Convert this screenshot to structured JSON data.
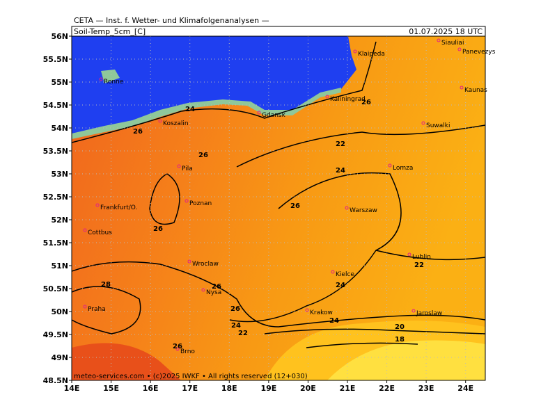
{
  "header": {
    "institute": "CETA — Inst. f. Wetter- und Klimafolgenanalysen —",
    "parameter": "Soil-Temp_5cm_[C]",
    "valid_time": "01.07.2025 18 UTC"
  },
  "footer": "meteo-services.com • (c)2025 IWKF • All rights reserved (12+030)",
  "map": {
    "lat_ticks": [
      {
        "value": 56,
        "label": "56N"
      },
      {
        "value": 55.5,
        "label": "55.5N"
      },
      {
        "value": 55,
        "label": "55N"
      },
      {
        "value": 54.5,
        "label": "54.5N"
      },
      {
        "value": 54,
        "label": "54N"
      },
      {
        "value": 53.5,
        "label": "53.5N"
      },
      {
        "value": 53,
        "label": "53N"
      },
      {
        "value": 52.5,
        "label": "52.5N"
      },
      {
        "value": 52,
        "label": "52N"
      },
      {
        "value": 51.5,
        "label": "51.5N"
      },
      {
        "value": 51,
        "label": "51N"
      },
      {
        "value": 50.5,
        "label": "50.5N"
      },
      {
        "value": 50,
        "label": "50N"
      },
      {
        "value": 49.5,
        "label": "49.5N"
      },
      {
        "value": 49,
        "label": "49N"
      },
      {
        "value": 48.5,
        "label": "48.5N"
      }
    ],
    "lon_ticks": [
      {
        "value": 14,
        "label": "14E"
      },
      {
        "value": 15,
        "label": "15E"
      },
      {
        "value": 16,
        "label": "16E"
      },
      {
        "value": 17,
        "label": "17E"
      },
      {
        "value": 18,
        "label": "18E"
      },
      {
        "value": 19,
        "label": "19E"
      },
      {
        "value": 20,
        "label": "20E"
      },
      {
        "value": 21,
        "label": "21E"
      },
      {
        "value": 22,
        "label": "22E"
      },
      {
        "value": 23,
        "label": "23E"
      },
      {
        "value": 24,
        "label": "24E"
      }
    ],
    "lat_range": [
      48.5,
      56
    ],
    "lon_range": [
      14,
      24.5
    ],
    "cities": [
      "Siauliai",
      "Panevezys",
      "Klaipeda",
      "Ronne",
      "Kaunas",
      "Kaliningrad",
      "Gdansk",
      "Koszalin",
      "Suwalki",
      "Lomza",
      "Pila",
      "Poznan",
      "Frankfurt/O.",
      "Warszaw",
      "Cottbus",
      "Lublin",
      "Wroclaw",
      "Kielce",
      "Nysa",
      "Praha",
      "Krakow",
      "Jaroslaw",
      "Brno"
    ],
    "contour_labels": [
      24,
      26,
      26,
      22,
      26,
      24,
      26,
      26,
      22,
      28,
      24,
      26,
      26,
      24,
      24,
      22,
      20,
      18,
      26
    ]
  }
}
